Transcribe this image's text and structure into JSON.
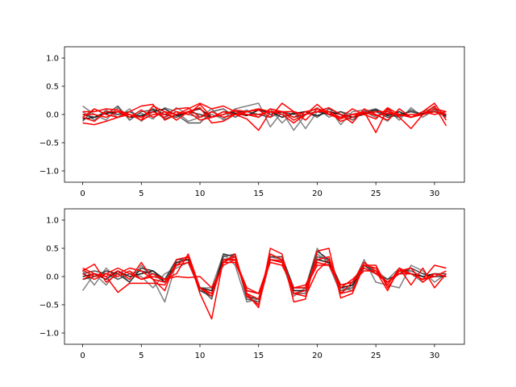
{
  "chart_data": [
    {
      "type": "line",
      "xlim": [
        -1.55,
        32.55
      ],
      "ylim": [
        -1.2,
        1.2
      ],
      "xticks": [
        0,
        5,
        10,
        15,
        20,
        25,
        30
      ],
      "xtick_labels": [
        "0",
        "5",
        "10",
        "15",
        "20",
        "25",
        "30"
      ],
      "yticks": [
        -1.0,
        -0.5,
        0.0,
        0.5,
        1.0
      ],
      "ytick_labels": [
        "−1.0",
        "−0.5",
        "0.0",
        "0.5",
        "1.0"
      ],
      "grid": false,
      "x": [
        0,
        1,
        2,
        3,
        4,
        5,
        6,
        7,
        8,
        9,
        10,
        11,
        12,
        13,
        14,
        15,
        16,
        17,
        18,
        19,
        20,
        21,
        22,
        23,
        24,
        25,
        26,
        27,
        28,
        29,
        30,
        31
      ],
      "series": [
        {
          "color": "#808080",
          "values": [
            0.15,
            0.0,
            -0.1,
            0.12,
            -0.05,
            0.02,
            -0.08,
            0.12,
            0.05,
            -0.12,
            -0.05,
            0.0,
            -0.08,
            0.1,
            0.15,
            0.2,
            -0.22,
            0.05,
            -0.28,
            0.0,
            0.12,
            -0.05,
            0.05,
            0.0,
            0.05,
            -0.05,
            0.08,
            -0.1,
            0.12,
            -0.05,
            0.08,
            -0.05
          ]
        },
        {
          "color": "#808080",
          "values": [
            0.05,
            -0.1,
            0.08,
            -0.05,
            0.1,
            -0.12,
            0.05,
            -0.05,
            0.12,
            0.0,
            -0.05,
            0.1,
            -0.1,
            0.0,
            0.08,
            -0.05,
            0.1,
            -0.15,
            0.05,
            -0.25,
            0.05,
            0.12,
            -0.18,
            0.05,
            0.08,
            0.0,
            -0.12,
            0.1,
            -0.05,
            0.05,
            0.12,
            0.0
          ]
        },
        {
          "color": "#595959",
          "values": [
            -0.12,
            0.1,
            0.0,
            0.15,
            -0.1,
            0.05,
            0.08,
            -0.08,
            0.0,
            -0.15,
            -0.15,
            0.05,
            0.1,
            -0.05,
            0.05,
            0.0,
            -0.05,
            0.05,
            0.0,
            0.05,
            -0.05,
            0.1,
            0.0,
            -0.1,
            0.05,
            0.1,
            0.0,
            -0.05,
            0.08,
            0.0,
            0.1,
            -0.05
          ]
        },
        {
          "color": "#3a3a3a",
          "values": [
            0.0,
            -0.05,
            0.05,
            0.0,
            0.05,
            -0.05,
            0.1,
            0.0,
            -0.05,
            0.05,
            0.0,
            -0.05,
            0.0,
            0.05,
            0.05,
            0.1,
            0.0,
            0.05,
            -0.05,
            0.0,
            0.05,
            0.0,
            0.05,
            -0.05,
            0.0,
            0.05,
            -0.05,
            0.0,
            0.05,
            0.0,
            0.05,
            0.0
          ]
        },
        {
          "color": "#1a1a1a",
          "values": [
            -0.08,
            -0.05,
            0.02,
            0.05,
            -0.05,
            -0.02,
            0.05,
            0.1,
            -0.02,
            0.05,
            0.1,
            -0.05,
            0.05,
            0.02,
            -0.02,
            0.08,
            0.05,
            -0.05,
            0.02,
            0.05,
            -0.02,
            0.05,
            0.0,
            -0.05,
            0.02,
            0.08,
            -0.02,
            0.05,
            -0.05,
            0.02,
            0.05,
            -0.02
          ]
        },
        {
          "color": "#ff0000",
          "values": [
            -0.05,
            0.1,
            0.0,
            -0.05,
            0.05,
            0.15,
            0.18,
            -0.1,
            0.0,
            0.1,
            0.2,
            0.1,
            0.15,
            0.05,
            0.0,
            -0.05,
            0.1,
            0.05,
            -0.1,
            0.0,
            0.18,
            0.0,
            -0.05,
            0.1,
            0.0,
            -0.08,
            0.12,
            0.0,
            -0.05,
            0.05,
            0.2,
            -0.1
          ]
        },
        {
          "color": "#ff0000",
          "values": [
            -0.15,
            -0.18,
            -0.12,
            -0.05,
            0.0,
            -0.1,
            0.15,
            0.05,
            -0.1,
            0.05,
            0.12,
            -0.15,
            -0.12,
            0.0,
            0.05,
            0.08,
            -0.05,
            0.2,
            0.05,
            -0.1,
            0.1,
            0.05,
            -0.12,
            -0.05,
            0.05,
            -0.32,
            0.1,
            -0.05,
            -0.25,
            0.0,
            0.15,
            -0.2
          ]
        },
        {
          "color": "#ff0000",
          "values": [
            0.05,
            0.05,
            0.1,
            0.08,
            0.0,
            -0.05,
            0.05,
            -0.05,
            0.05,
            0.0,
            0.18,
            -0.05,
            0.05,
            0.0,
            -0.08,
            -0.28,
            0.05,
            0.0,
            -0.15,
            0.0,
            0.05,
            0.12,
            0.0,
            -0.15,
            0.1,
            0.0,
            -0.1,
            0.1,
            -0.05,
            0.0,
            0.05,
            0.0
          ]
        },
        {
          "color": "#ff0000",
          "values": [
            -0.05,
            -0.12,
            0.05,
            0.05,
            0.0,
            -0.1,
            0.0,
            0.0,
            0.1,
            0.12,
            -0.05,
            0.05,
            -0.05,
            0.0,
            0.0,
            0.0,
            0.05,
            0.05,
            -0.05,
            0.05,
            0.1,
            0.0,
            -0.08,
            0.0,
            0.05,
            -0.02,
            0.02,
            0.0,
            -0.05,
            0.05,
            0.0,
            0.05
          ]
        },
        {
          "color": "#ff0000",
          "values": [
            0.0,
            0.0,
            -0.05,
            0.05,
            -0.05,
            0.08,
            -0.05,
            0.05,
            0.0,
            0.05,
            -0.1,
            -0.05,
            0.0,
            0.08,
            0.05,
            0.1,
            0.05,
            0.05,
            0.05,
            0.0,
            0.05,
            0.05,
            -0.05,
            0.0,
            0.0,
            0.05,
            0.05,
            -0.02,
            0.0,
            0.0,
            0.1,
            0.05
          ]
        }
      ]
    },
    {
      "type": "line",
      "xlim": [
        -1.55,
        32.55
      ],
      "ylim": [
        -1.2,
        1.2
      ],
      "xticks": [
        0,
        5,
        10,
        15,
        20,
        25,
        30
      ],
      "xtick_labels": [
        "0",
        "5",
        "10",
        "15",
        "20",
        "25",
        "30"
      ],
      "yticks": [
        -1.0,
        -0.5,
        0.0,
        0.5,
        1.0
      ],
      "ytick_labels": [
        "−1.0",
        "−0.5",
        "0.0",
        "0.5",
        "1.0"
      ],
      "grid": false,
      "x": [
        0,
        1,
        2,
        3,
        4,
        5,
        6,
        7,
        8,
        9,
        10,
        11,
        12,
        13,
        14,
        15,
        16,
        17,
        18,
        19,
        20,
        21,
        22,
        23,
        24,
        25,
        26,
        27,
        28,
        29,
        30,
        31
      ],
      "series": [
        {
          "color": "#808080",
          "values": [
            -0.25,
            0.05,
            -0.15,
            0.1,
            -0.1,
            0.2,
            -0.05,
            -0.45,
            0.25,
            0.3,
            -0.2,
            -0.2,
            0.4,
            0.2,
            -0.45,
            -0.4,
            0.3,
            0.25,
            -0.35,
            -0.2,
            0.5,
            0.2,
            -0.3,
            -0.15,
            0.3,
            -0.1,
            -0.15,
            -0.2,
            0.2,
            0.1,
            -0.1,
            0.05
          ]
        },
        {
          "color": "#808080",
          "values": [
            0.1,
            -0.15,
            0.15,
            -0.05,
            0.05,
            0.0,
            -0.2,
            0.05,
            0.15,
            0.25,
            -0.25,
            -0.3,
            0.3,
            0.35,
            -0.3,
            -0.5,
            0.35,
            0.3,
            -0.25,
            -0.25,
            0.4,
            0.25,
            -0.2,
            -0.25,
            0.2,
            0.1,
            -0.05,
            0.15,
            0.05,
            -0.1,
            0.05,
            0.0
          ]
        },
        {
          "color": "#595959",
          "values": [
            0.05,
            0.1,
            0.05,
            -0.05,
            0.05,
            0.1,
            0.05,
            -0.1,
            0.2,
            0.35,
            -0.2,
            -0.4,
            0.35,
            0.4,
            -0.4,
            -0.45,
            0.4,
            0.3,
            -0.3,
            -0.3,
            0.35,
            0.3,
            -0.25,
            -0.2,
            0.25,
            0.05,
            -0.1,
            0.1,
            0.1,
            0.0,
            0.05,
            0.05
          ]
        },
        {
          "color": "#3a3a3a",
          "values": [
            -0.05,
            0.0,
            0.1,
            0.05,
            -0.1,
            0.15,
            0.1,
            -0.05,
            0.3,
            0.3,
            -0.25,
            -0.35,
            0.4,
            0.35,
            -0.35,
            -0.4,
            0.35,
            0.35,
            -0.2,
            -0.2,
            0.45,
            0.3,
            -0.15,
            -0.1,
            0.2,
            0.05,
            -0.05,
            0.05,
            0.15,
            0.05,
            0.0,
            0.0
          ]
        },
        {
          "color": "#1a1a1a",
          "values": [
            0.0,
            0.05,
            -0.05,
            0.1,
            0.0,
            0.05,
            0.1,
            -0.1,
            0.25,
            0.3,
            -0.2,
            -0.25,
            0.3,
            0.3,
            -0.25,
            -0.3,
            0.3,
            0.25,
            -0.25,
            -0.25,
            0.3,
            0.25,
            -0.2,
            -0.15,
            0.15,
            0.05,
            -0.1,
            0.05,
            0.05,
            0.0,
            0.05,
            0.0
          ]
        },
        {
          "color": "#ff0000",
          "values": [
            0.15,
            0.05,
            0.0,
            -0.28,
            -0.12,
            -0.12,
            -0.12,
            -0.15,
            0.2,
            0.35,
            -0.2,
            -0.35,
            0.25,
            0.4,
            -0.35,
            -0.5,
            0.3,
            0.28,
            -0.3,
            -0.35,
            0.1,
            0.3,
            -0.3,
            -0.1,
            0.25,
            0.1,
            -0.25,
            0.15,
            0.05,
            -0.05,
            0.2,
            0.15
          ]
        },
        {
          "color": "#ff0000",
          "values": [
            0.1,
            0.22,
            -0.1,
            0.05,
            0.15,
            0.1,
            -0.05,
            -0.25,
            0.3,
            0.35,
            -0.3,
            -0.75,
            0.3,
            0.3,
            -0.3,
            -0.55,
            0.5,
            0.4,
            -0.45,
            -0.4,
            0.45,
            0.5,
            -0.38,
            -0.3,
            0.2,
            0.15,
            -0.15,
            0.15,
            -0.15,
            0.15,
            -0.2,
            0.05
          ]
        },
        {
          "color": "#ff0000",
          "values": [
            -0.05,
            0.05,
            0.0,
            0.1,
            -0.05,
            0.25,
            -0.05,
            -0.1,
            0.2,
            0.25,
            -0.2,
            -0.3,
            0.25,
            0.35,
            -0.3,
            -0.4,
            0.4,
            0.3,
            -0.3,
            -0.25,
            0.3,
            0.35,
            -0.3,
            -0.25,
            0.2,
            0.2,
            -0.2,
            0.1,
            0.15,
            -0.1,
            0.05,
            0.0
          ]
        },
        {
          "color": "#ff0000",
          "values": [
            0.05,
            -0.05,
            0.05,
            0.0,
            0.1,
            -0.05,
            0.05,
            -0.05,
            0.05,
            0.4,
            -0.2,
            -0.3,
            0.25,
            0.25,
            -0.25,
            -0.3,
            0.3,
            0.25,
            -0.2,
            -0.2,
            0.2,
            0.2,
            -0.15,
            -0.1,
            0.1,
            0.1,
            -0.1,
            0.05,
            0.05,
            -0.05,
            0.05,
            0.0
          ]
        },
        {
          "color": "#ff0000",
          "values": [
            0.12,
            0.0,
            0.05,
            0.15,
            0.05,
            -0.05,
            0.0,
            -0.05,
            0.0,
            -0.02,
            0.0,
            -0.2,
            0.2,
            0.3,
            -0.2,
            -0.3,
            0.25,
            0.2,
            -0.2,
            -0.15,
            0.25,
            0.2,
            -0.2,
            -0.05,
            0.15,
            0.05,
            -0.1,
            0.1,
            0.05,
            -0.05,
            0.0,
            0.1
          ]
        }
      ]
    }
  ]
}
